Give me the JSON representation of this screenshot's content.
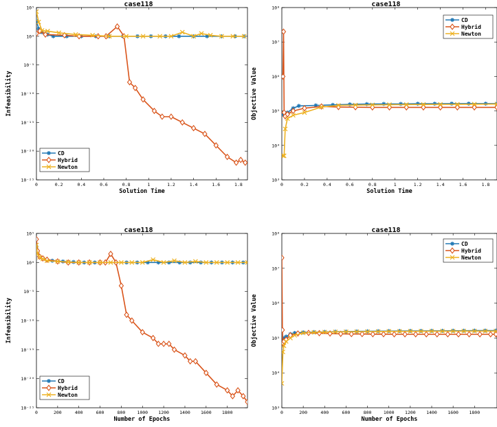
{
  "colors": {
    "CD": "#1f77b4",
    "Hybrid": "#d95319",
    "Newton": "#edb120"
  },
  "chart_data": [
    {
      "type": "line",
      "title": "case118",
      "xlabel": "Solution Time",
      "ylabel": "Infeasibility",
      "yscale": "log",
      "xlim": [
        0,
        1.88
      ],
      "xticks": [
        0,
        0.2,
        0.4,
        0.6,
        0.8,
        1,
        1.2,
        1.4,
        1.6,
        1.8
      ],
      "xtick_labels": [
        "0",
        "0.2",
        "0.4",
        "0.6",
        "0.8",
        "1",
        "1.2",
        "1.4",
        "1.6",
        "1.8"
      ],
      "ylim": [
        1e-25,
        100000.0
      ],
      "yticks": [
        1e-25,
        1e-20,
        1e-15,
        1e-10,
        1e-05,
        1,
        100000.0
      ],
      "ytick_labels": [
        "10⁻²⁵",
        "10⁻²⁰",
        "10⁻¹⁵",
        "10⁻¹⁰",
        "10⁻⁵",
        "10⁰",
        "10⁵"
      ],
      "legend": "bottom-left",
      "series": [
        {
          "name": "CD",
          "marker": "asterisk",
          "x": [
            0,
            0.02,
            0.05,
            0.1,
            0.15,
            0.27,
            0.4,
            0.53,
            0.65,
            0.77,
            0.9,
            1.02,
            1.15,
            1.27,
            1.4,
            1.52,
            1.65,
            1.77,
            1.85
          ],
          "y": [
            500,
            20,
            5,
            2,
            1,
            1,
            1,
            1,
            1,
            1,
            1,
            1,
            1,
            1,
            1,
            1,
            1,
            1,
            1
          ]
        },
        {
          "name": "Hybrid",
          "marker": "diamond",
          "x": [
            0,
            0.03,
            0.08,
            0.25,
            0.38,
            0.55,
            0.62,
            0.72,
            0.78,
            0.83,
            0.88,
            0.95,
            1.05,
            1.12,
            1.2,
            1.3,
            1.4,
            1.5,
            1.6,
            1.7,
            1.78,
            1.82,
            1.86
          ],
          "y": [
            3,
            8,
            2,
            1.5,
            1,
            1,
            1,
            50,
            1,
            1e-08,
            1e-09,
            1e-11,
            1e-13,
            1e-14,
            1e-14,
            1e-15,
            1e-16,
            1e-17,
            1e-19,
            1e-21,
            1e-22,
            3e-22,
            1e-22
          ]
        },
        {
          "name": "Newton",
          "marker": "x",
          "x": [
            0,
            0.02,
            0.05,
            0.1,
            0.2,
            0.35,
            0.5,
            0.65,
            0.8,
            0.95,
            1.1,
            1.2,
            1.3,
            1.4,
            1.47,
            1.55,
            1.65,
            1.75,
            1.85
          ],
          "y": [
            20000,
            300,
            10,
            8,
            4,
            2,
            1.5,
            1,
            1,
            1,
            1,
            1,
            5,
            1,
            3,
            1.5,
            1,
            1,
            1
          ]
        }
      ]
    },
    {
      "type": "line",
      "title": "case118",
      "xlabel": "Solution Time",
      "ylabel": "Objective Value",
      "yscale": "log",
      "xlim": [
        0,
        1.9
      ],
      "xticks": [
        0,
        0.2,
        0.4,
        0.6,
        0.8,
        1,
        1.2,
        1.4,
        1.6,
        1.8
      ],
      "xtick_labels": [
        "0",
        "0.2",
        "0.4",
        "0.6",
        "0.8",
        "1",
        "1.2",
        "1.4",
        "1.6",
        "1.8"
      ],
      "ylim": [
        1000,
        100000000
      ],
      "yticks": [
        1000,
        10000,
        100000,
        1000000,
        10000000,
        100000000
      ],
      "ytick_labels": [
        "10³",
        "10⁴",
        "10⁵",
        "10⁶",
        "10⁷",
        "10⁸"
      ],
      "legend": "top-right",
      "series": [
        {
          "name": "CD",
          "marker": "asterisk",
          "x": [
            0.01,
            0.02,
            0.05,
            0.1,
            0.15,
            0.3,
            0.45,
            0.6,
            0.75,
            0.9,
            1.05,
            1.2,
            1.35,
            1.5,
            1.65,
            1.8,
            1.9
          ],
          "y": [
            80000,
            75000,
            90000,
            120000,
            140000,
            145000,
            150000,
            155000,
            158000,
            160000,
            160000,
            162000,
            162000,
            163000,
            163000,
            163000,
            163000
          ]
        },
        {
          "name": "Hybrid",
          "marker": "diamond",
          "x": [
            0.01,
            0.015,
            0.02,
            0.03,
            0.05,
            0.1,
            0.2,
            0.35,
            0.5,
            0.65,
            0.8,
            0.95,
            1.1,
            1.25,
            1.4,
            1.55,
            1.7,
            1.9
          ],
          "y": [
            1000000,
            20000000,
            90000,
            70000,
            80000,
            100000,
            120000,
            135000,
            130000,
            128000,
            127000,
            127000,
            127000,
            127000,
            127000,
            127000,
            127000,
            127000
          ]
        },
        {
          "name": "Newton",
          "marker": "x",
          "x": [
            0.01,
            0.02,
            0.03,
            0.05,
            0.1,
            0.2,
            0.35,
            0.5,
            0.65,
            0.8,
            0.95,
            1.1,
            1.25,
            1.4,
            1.55,
            1.7,
            1.9
          ],
          "y": [
            5000,
            5000,
            30000,
            60000,
            75000,
            90000,
            130000,
            145000,
            148000,
            150000,
            152000,
            153000,
            154000,
            155000,
            156000,
            157000,
            158000
          ]
        }
      ]
    },
    {
      "type": "line",
      "title": "case118",
      "xlabel": "Number of Epochs",
      "ylabel": "Infeasibility",
      "yscale": "log",
      "xlim": [
        0,
        1990
      ],
      "xticks": [
        0,
        200,
        400,
        600,
        800,
        1000,
        1200,
        1400,
        1600,
        1800
      ],
      "xtick_labels": [
        "0",
        "200",
        "400",
        "600",
        "800",
        "1000",
        "1200",
        "1400",
        "1600",
        "1800"
      ],
      "ylim": [
        1e-25,
        100000.0
      ],
      "yticks": [
        1e-25,
        1e-20,
        1e-15,
        1e-10,
        1e-05,
        1,
        100000.0
      ],
      "ytick_labels": [
        "10⁻²⁵",
        "10⁻²⁰",
        "10⁻¹⁵",
        "10⁻¹⁰",
        "10⁻⁵",
        "10⁰",
        "10⁵"
      ],
      "legend": "bottom-left",
      "series": [
        {
          "name": "CD",
          "marker": "asterisk",
          "x": [
            0,
            10,
            30,
            60,
            100,
            150,
            250,
            350,
            450,
            550,
            650,
            750,
            850,
            950,
            1050,
            1150,
            1250,
            1350,
            1450,
            1550,
            1650,
            1750,
            1850,
            1950
          ],
          "y": [
            500,
            50,
            10,
            5,
            3,
            2,
            1.5,
            1.2,
            1,
            1,
            1,
            1,
            1,
            1,
            1,
            1,
            1,
            1,
            1,
            1,
            1,
            1,
            1,
            1
          ]
        },
        {
          "name": "Hybrid",
          "marker": "diamond",
          "x": [
            0,
            10,
            30,
            60,
            100,
            200,
            300,
            400,
            500,
            600,
            650,
            700,
            750,
            800,
            850,
            900,
            1000,
            1100,
            1150,
            1200,
            1250,
            1300,
            1400,
            1450,
            1500,
            1600,
            1700,
            1800,
            1850,
            1900,
            1950,
            1990
          ],
          "y": [
            10000,
            100,
            10,
            5,
            3,
            1.5,
            1,
            1,
            1,
            1,
            1,
            30,
            1,
            0.0001,
            1e-09,
            1e-10,
            1e-12,
            1e-13,
            1e-14,
            1e-14,
            1e-14,
            1e-15,
            1e-16,
            1e-17,
            1e-17,
            1e-19,
            1e-21,
            1e-22,
            1e-23,
            1e-22,
            1e-23,
            1e-24
          ]
        },
        {
          "name": "Newton",
          "marker": "x",
          "x": [
            0,
            10,
            30,
            60,
            100,
            200,
            300,
            400,
            500,
            600,
            700,
            800,
            900,
            1000,
            1100,
            1200,
            1300,
            1400,
            1500,
            1600,
            1700,
            1800,
            1900,
            1990
          ],
          "y": [
            1000,
            30,
            8,
            4,
            2,
            1.5,
            1.2,
            1,
            1,
            1,
            1,
            1,
            1,
            1,
            3,
            1,
            2,
            1,
            1.5,
            1,
            1,
            1,
            1,
            1
          ]
        }
      ]
    },
    {
      "type": "line",
      "title": "case118",
      "xlabel": "Number of Epochs",
      "ylabel": "Objective Value",
      "yscale": "log",
      "xlim": [
        0,
        2010
      ],
      "xticks": [
        0,
        200,
        400,
        600,
        800,
        1000,
        1200,
        1400,
        1600,
        1800
      ],
      "xtick_labels": [
        "0",
        "200",
        "400",
        "600",
        "800",
        "1000",
        "1200",
        "1400",
        "1600",
        "1800"
      ],
      "ylim": [
        1000,
        100000000
      ],
      "yticks": [
        1000,
        10000,
        100000,
        1000000,
        10000000,
        100000000
      ],
      "ytick_labels": [
        "10³",
        "10⁴",
        "10⁵",
        "10⁶",
        "10⁷",
        "10⁸"
      ],
      "legend": "top-right",
      "series": [
        {
          "name": "CD",
          "marker": "asterisk",
          "x": [
            0,
            10,
            20,
            40,
            80,
            120,
            200,
            300,
            400,
            500,
            600,
            700,
            800,
            900,
            1000,
            1100,
            1200,
            1300,
            1400,
            1500,
            1600,
            1700,
            1800,
            1900,
            2000
          ],
          "y": [
            170000,
            80000,
            100000,
            110000,
            130000,
            140000,
            145000,
            148000,
            150000,
            152000,
            153000,
            155000,
            156000,
            157000,
            158000,
            159000,
            160000,
            160000,
            161000,
            161000,
            162000,
            162000,
            163000,
            163000,
            163000
          ]
        },
        {
          "name": "Hybrid",
          "marker": "diamond",
          "x": [
            0,
            5,
            10,
            20,
            40,
            80,
            150,
            250,
            350,
            450,
            550,
            650,
            750,
            850,
            950,
            1050,
            1150,
            1250,
            1350,
            1450,
            1550,
            1650,
            1750,
            1850,
            1950,
            2000
          ],
          "y": [
            20000000,
            170000,
            70000,
            80000,
            90000,
            120000,
            135000,
            140000,
            138000,
            135000,
            132000,
            130000,
            130000,
            129000,
            129000,
            128000,
            128000,
            128000,
            128000,
            128000,
            128000,
            128000,
            128000,
            128000,
            128000,
            128000
          ]
        },
        {
          "name": "Newton",
          "marker": "x",
          "x": [
            0,
            10,
            20,
            40,
            80,
            120,
            200,
            300,
            400,
            500,
            600,
            700,
            800,
            900,
            1000,
            1100,
            1200,
            1300,
            1400,
            1500,
            1600,
            1700,
            1800,
            1900,
            2000
          ],
          "y": [
            5000,
            40000,
            60000,
            80000,
            100000,
            120000,
            140000,
            145000,
            148000,
            150000,
            151000,
            152000,
            153000,
            154000,
            155000,
            155000,
            156000,
            156000,
            157000,
            157000,
            157000,
            158000,
            158000,
            158000,
            158000
          ]
        }
      ]
    }
  ]
}
